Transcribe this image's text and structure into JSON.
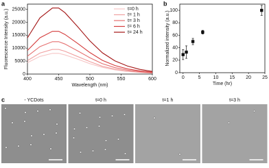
{
  "panel_labels": [
    "a",
    "b",
    "c"
  ],
  "chart_data": [
    {
      "type": "line",
      "xlabel": "Wavelength (nm)",
      "ylabel": "Fluorescence Intensity (a.u.)",
      "x": [
        400,
        420,
        440,
        450,
        460,
        480,
        500,
        520,
        540,
        560,
        580,
        600
      ],
      "xlim": [
        400,
        600
      ],
      "xticks": [
        400,
        450,
        500,
        550,
        600
      ],
      "ylim": [
        0,
        27000
      ],
      "yticks": [
        0,
        5000,
        10000,
        15000,
        20000,
        25000
      ],
      "legend": "upper right",
      "series": [
        {
          "name": "t=0 h",
          "color": "#f6c6c6",
          "values": [
            4400,
            6800,
            8000,
            8000,
            7400,
            5800,
            4000,
            2600,
            1600,
            1000,
            600,
            300
          ]
        },
        {
          "name": "t= 1 h",
          "color": "#f0a0a0",
          "values": [
            5200,
            8100,
            9500,
            9500,
            8800,
            6800,
            4800,
            3000,
            1900,
            1100,
            700,
            400
          ]
        },
        {
          "name": "t= 3 h",
          "color": "#e57070",
          "values": [
            6900,
            10600,
            12500,
            12500,
            11600,
            9000,
            6300,
            4000,
            2500,
            1500,
            900,
            500
          ]
        },
        {
          "name": "t= 6 h",
          "color": "#d43c3c",
          "values": [
            9100,
            14000,
            16500,
            16500,
            15300,
            11900,
            8300,
            5300,
            3300,
            2000,
            1200,
            700
          ]
        },
        {
          "name": "t= 24 h",
          "color": "#a31414",
          "values": [
            14000,
            21700,
            25500,
            25500,
            23700,
            18400,
            12800,
            8200,
            5100,
            3100,
            1800,
            1000
          ]
        }
      ]
    },
    {
      "type": "scatter",
      "xlabel": "Time (hr)",
      "ylabel": "Normalized intensity (a.u.)",
      "xlim": [
        -1,
        25
      ],
      "xticks": [
        0,
        5,
        10,
        15,
        20,
        25
      ],
      "ylim": [
        0,
        110
      ],
      "yticks": [
        0,
        20,
        40,
        60,
        80,
        100
      ],
      "series": [
        {
          "color": "#111111",
          "x": [
            0,
            1,
            3,
            6,
            24
          ],
          "values": [
            29,
            33,
            50,
            65,
            100
          ],
          "errors": [
            8,
            10,
            5,
            3,
            8
          ]
        }
      ]
    }
  ],
  "images": [
    "- YCDots",
    "t=0 h",
    "t=1 h",
    "t=3 h"
  ]
}
